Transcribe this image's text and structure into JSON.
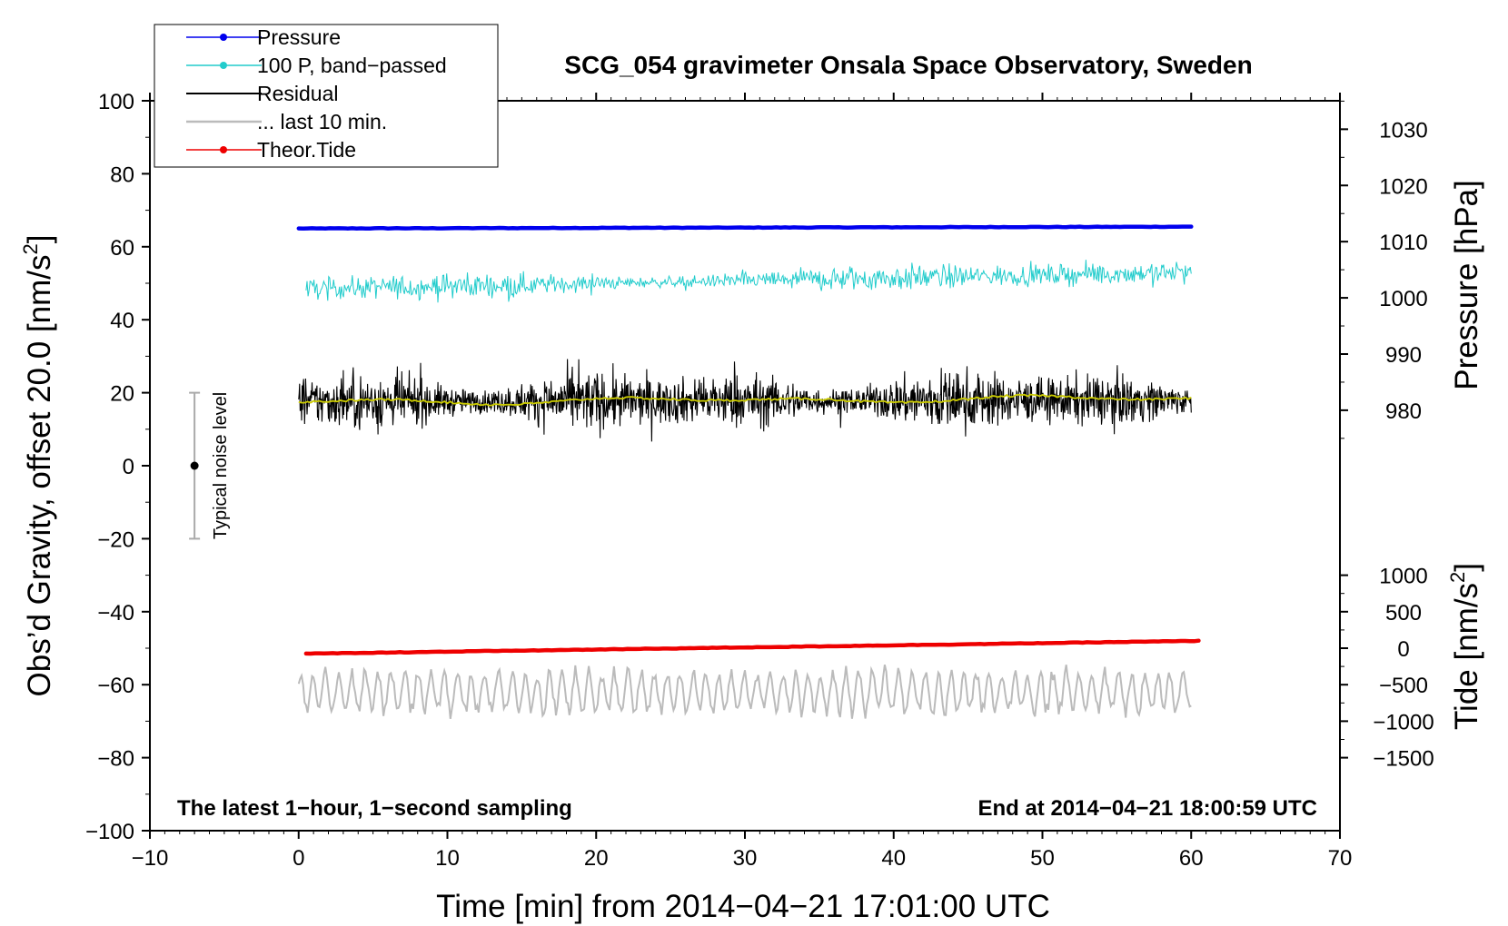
{
  "chart_data": {
    "type": "line",
    "title": "SCG_054 gravimeter Onsala Space Observatory, Sweden",
    "xlabel": "Time [min] from 2014−04−21 17:01:00 UTC",
    "ylabel": "Obs’d Gravity, offset 20.0 [nm/s²]",
    "ylabel_text": "Obs’d Gravity, offset 20.0 [nm/s",
    "ylabel_sup": "2",
    "ylabel_end": "]",
    "xlim": [
      -10,
      70
    ],
    "ylim": [
      -100,
      100
    ],
    "x_ticks": [
      -10,
      0,
      10,
      20,
      30,
      40,
      50,
      60,
      70
    ],
    "x_tick_labels": [
      "−10",
      "0",
      "10",
      "20",
      "30",
      "40",
      "50",
      "60",
      "70"
    ],
    "y_ticks": [
      -100,
      -80,
      -60,
      -40,
      -20,
      0,
      20,
      40,
      60,
      80,
      100
    ],
    "y_tick_labels": [
      "−100",
      "−80",
      "−60",
      "−40",
      "−20",
      "0",
      "20",
      "40",
      "60",
      "80",
      "100"
    ],
    "pressure_axis": {
      "label": "Pressure [hPa]",
      "ticks": [
        980,
        990,
        1000,
        1010,
        1020,
        1030
      ],
      "tick_labels": [
        "980",
        "990",
        "1000",
        "1010",
        "1020",
        "1030"
      ],
      "gravity_at_1000": 46.0,
      "gravity_per_hpa": 1.54
    },
    "tide_axis": {
      "label_text": "Tide [nm/s",
      "label_sup": "2",
      "label_end": "]",
      "ticks": [
        -1500,
        -1000,
        -500,
        0,
        500,
        1000
      ],
      "tick_labels": [
        "−1500",
        "−1000",
        "−500",
        "0",
        "500",
        "1000"
      ],
      "gravity_at_0": -50.0,
      "gravity_per_unit": 0.02
    },
    "legend": [
      {
        "label": "Pressure",
        "color": "#0000ee",
        "marker": true
      },
      {
        "label": "100 P, band−passed",
        "color": "#22cccc",
        "marker": true
      },
      {
        "label": "Residual",
        "color": "#000000",
        "marker": false
      },
      {
        "label": "... last 10 min.",
        "color": "#bbbbbb",
        "marker": false
      },
      {
        "label": "Theor.Tide",
        "color": "#ee0000",
        "marker": true
      }
    ],
    "legend_position": "top-left",
    "series": [
      {
        "name": "Pressure",
        "color": "#0000ee",
        "kind": "flat",
        "start": 65.0,
        "end": 65.5,
        "x_start": 0,
        "x_end": 60
      },
      {
        "name": "100 P, band−passed",
        "color": "#22cccc",
        "kind": "noise",
        "center": 48.5,
        "center_end": 53.0,
        "amplitude": 2.5,
        "x_start": 0.5,
        "x_end": 60
      },
      {
        "name": "Residual",
        "color": "#000000",
        "kind": "noise",
        "center": 17.5,
        "center_end": 18.0,
        "amplitude": 5.5,
        "x_start": 0,
        "x_end": 60
      },
      {
        "name": "Residual smoothed",
        "color": "#cccc00",
        "kind": "smooth",
        "center": 17.5,
        "center_end": 18.5,
        "x_start": 0,
        "x_end": 60
      },
      {
        "name": "... last 10 min.",
        "color": "#bbbbbb",
        "kind": "wave",
        "center": -62.0,
        "amplitude": 5.0,
        "x_start": 0,
        "x_end": 60
      },
      {
        "name": "Theor.Tide",
        "color": "#ee0000",
        "kind": "flat",
        "start": -51.5,
        "end": -48.0,
        "x_start": 0.5,
        "x_end": 60.5
      }
    ],
    "noise_indicator": {
      "x": -7,
      "center": 0,
      "half_range": 20,
      "label": "Typical noise level"
    },
    "annotations": {
      "bottom_left": "The latest 1−hour, 1−second sampling",
      "bottom_right": "End at 2014−04−21 18:00:59 UTC"
    }
  }
}
